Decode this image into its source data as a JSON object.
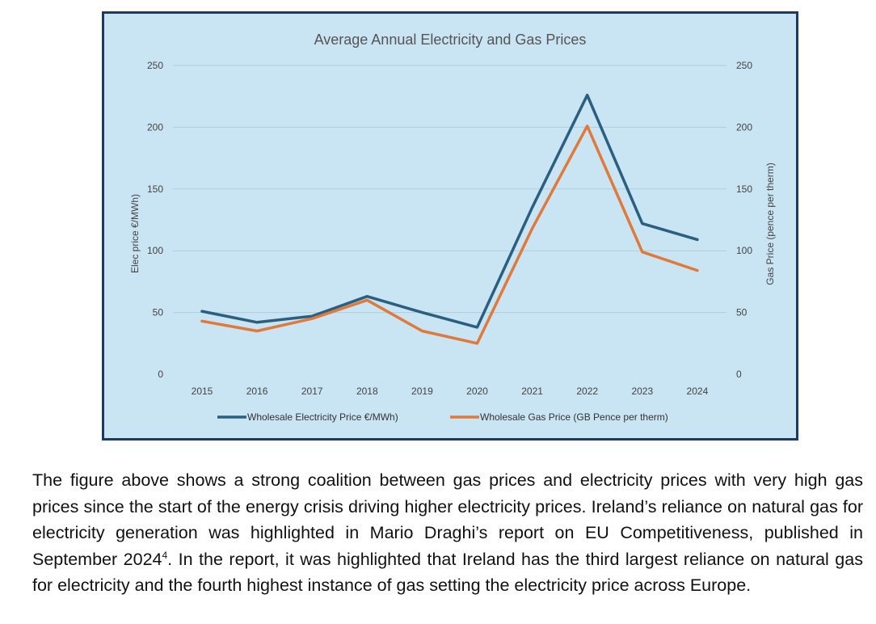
{
  "chart_data": {
    "type": "line",
    "title": "Average Annual Electricity and Gas Prices",
    "x": [
      "2015",
      "2016",
      "2017",
      "2018",
      "2019",
      "2020",
      "2021",
      "2022",
      "2023",
      "2024"
    ],
    "ylabel_left": "Elec price €/MWh)",
    "ylabel_right": "Gas Price (pence per therm)",
    "ylim": [
      0,
      250
    ],
    "yticks": [
      "0",
      "50",
      "100",
      "150",
      "200",
      "250"
    ],
    "grid": true,
    "legend_position": "bottom",
    "series": [
      {
        "name": "Wholesale Electricity Price €/MWh)",
        "axis": "left",
        "color": "#2a5f80",
        "values": [
          51,
          42,
          47,
          63,
          50,
          38,
          135,
          226,
          122,
          109
        ]
      },
      {
        "name": "Wholesale Gas Price (GB Pence per therm)",
        "axis": "right",
        "color": "#e07a3c",
        "values": [
          43,
          35,
          45,
          60,
          35,
          25,
          118,
          201,
          99,
          84
        ]
      }
    ],
    "colors": {
      "background": "#c9e4f2",
      "border": "#1f3a5a",
      "grid": "#b3ccd9",
      "text": "#444444",
      "title": "#555555"
    }
  },
  "paragraph": {
    "text": "The figure above shows a strong coalition between gas prices and electricity prices with very high gas prices since the start of the energy crisis driving higher electricity prices. Ireland’s reliance on natural gas for electricity generation was highlighted in Mario Draghi’s report on EU Competitiveness, published in September 2024",
    "footnote_mark": "4",
    "text_after": ". In the report, it was highlighted that Ireland has the third largest reliance on natural gas for electricity and the fourth highest instance of gas setting the electricity price across Europe."
  }
}
